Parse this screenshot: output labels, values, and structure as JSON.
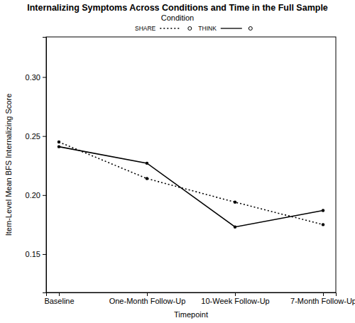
{
  "chart_data": {
    "type": "line",
    "title": "Internalizing Symptoms Across Conditions and Time in the Full Sample",
    "x_label": "Timepoint",
    "y_label": "Item-Level Mean BFS Internalizing Score",
    "legend_title": "Condition",
    "legend": "top",
    "grid": false,
    "categories": [
      "Baseline",
      "One-Month Follow-Up",
      "10-Week Follow-Up",
      "7-Month Follow-Up"
    ],
    "ylim": [
      0.1175,
      0.334
    ],
    "yticks": [
      {
        "value": 0.15,
        "label": "0.15"
      },
      {
        "value": 0.2,
        "label": "0.20"
      },
      {
        "value": 0.25,
        "label": "0.25"
      },
      {
        "value": 0.3,
        "label": "0.30"
      }
    ],
    "series": [
      {
        "name": "SHARE",
        "color": "#000000",
        "line_style": "dotted",
        "marker": "circle",
        "values": [
          0.245,
          0.214,
          0.194,
          0.175
        ]
      },
      {
        "name": "THINK",
        "color": "#000000",
        "line_style": "solid",
        "marker": "circle",
        "values": [
          0.241,
          0.227,
          0.173,
          0.187
        ]
      }
    ]
  }
}
